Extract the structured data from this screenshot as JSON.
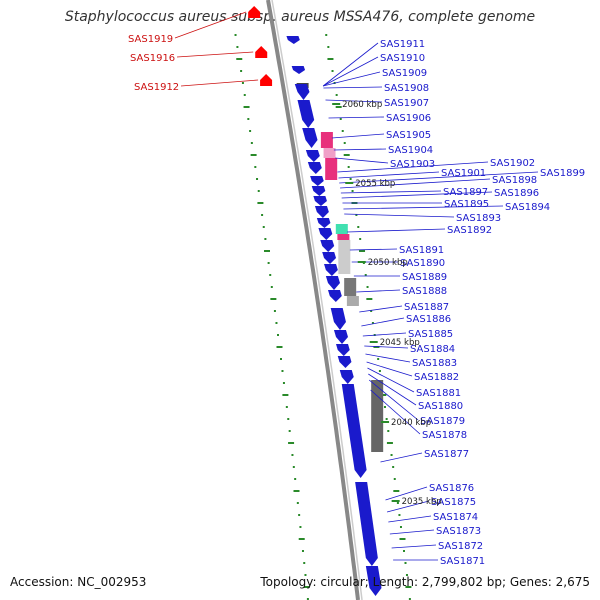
{
  "title": "Staphylococcus aureus subsp. aureus MSSA476, complete genome",
  "footer": {
    "accession": "Accession: NC_002953",
    "summary": "Topology: circular; Length: 2,799,802 bp; Genes: 2,675"
  },
  "colors": {
    "forward_gene": "#ff0000",
    "reverse_gene": "#1a1acc",
    "label_blue": "#1a1acc",
    "label_red": "#cc1111",
    "backbone": "#888888",
    "tick": "#2a8a2a",
    "feature_magenta": "#e8307c",
    "feature_pink": "#f0a0c8",
    "feature_teal": "#40e0b0",
    "feature_gray": "#999999",
    "feature_dark": "#555555"
  },
  "kbp_markers": [
    "2060 kbp",
    "2055 kbp",
    "2050 kbp",
    "2045 kbp",
    "2040 kbp",
    "2035 kbp"
  ],
  "red_genes": [
    "SAS1919",
    "SAS1916",
    "SAS1912"
  ],
  "blue_genes": [
    "SAS1911",
    "SAS1910",
    "SAS1909",
    "SAS1908",
    "SAS1907",
    "SAS1906",
    "SAS1905",
    "SAS1904",
    "SAS1903",
    "SAS1902",
    "SAS1901",
    "SAS1899",
    "SAS1898",
    "SAS1897",
    "SAS1896",
    "SAS1895",
    "SAS1894",
    "SAS1893",
    "SAS1892",
    "SAS1891",
    "SAS1890",
    "SAS1889",
    "SAS1888",
    "SAS1887",
    "SAS1886",
    "SAS1885",
    "SAS1884",
    "SAS1883",
    "SAS1882",
    "SAS1881",
    "SAS1880",
    "SAS1879",
    "SAS1878",
    "SAS1877",
    "SAS1876",
    "SAS1875",
    "SAS1874",
    "SAS1873",
    "SAS1872",
    "SAS1871"
  ]
}
